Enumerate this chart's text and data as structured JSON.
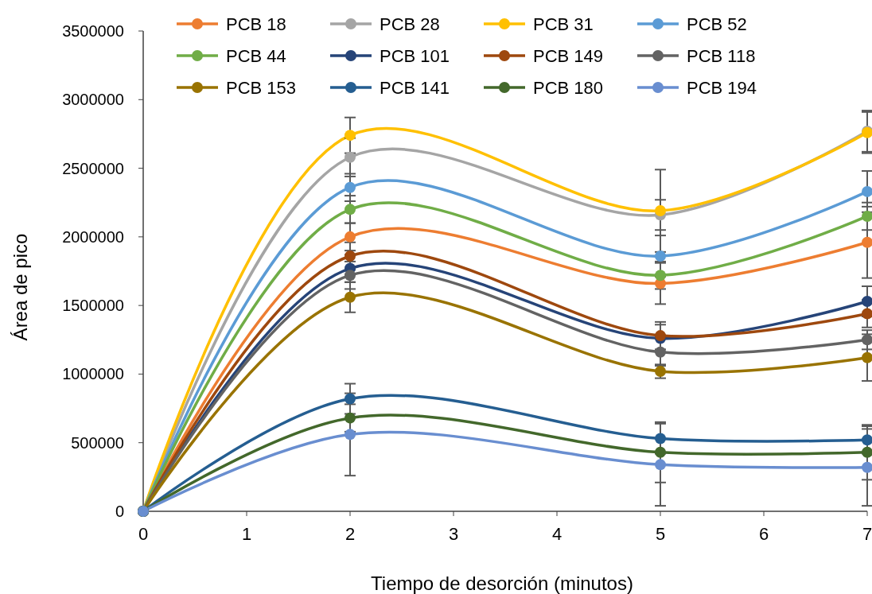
{
  "chart_data": {
    "type": "line",
    "xlabel": "Tiempo de desorción (minutos)",
    "ylabel": "Área de pico",
    "x": [
      0,
      2,
      5,
      7
    ],
    "xlim": [
      0,
      7
    ],
    "xticks": [
      0,
      1,
      2,
      3,
      4,
      5,
      6,
      7
    ],
    "ylim": [
      0,
      3500000
    ],
    "yticks": [
      0,
      500000,
      1000000,
      1500000,
      2000000,
      2500000,
      3000000,
      3500000
    ],
    "grid": false,
    "legend": "top",
    "marker": "circle",
    "line_style": "solid",
    "series": [
      {
        "name": "PCB 18",
        "color": "#ed7d31",
        "values": [
          0,
          2000000,
          1660000,
          1960000
        ],
        "errors": [
          null,
          100000,
          150000,
          260000
        ]
      },
      {
        "name": "PCB 28",
        "color": "#a5a5a5",
        "values": [
          0,
          2580000,
          2160000,
          2770000
        ],
        "errors": [
          null,
          140000,
          110000,
          150000
        ]
      },
      {
        "name": "PCB 31",
        "color": "#ffc000",
        "values": [
          0,
          2740000,
          2190000,
          2760000
        ],
        "errors": [
          null,
          130000,
          300000,
          150000
        ]
      },
      {
        "name": "PCB 52",
        "color": "#5b9bd5",
        "values": [
          0,
          2360000,
          1860000,
          2330000
        ],
        "errors": [
          null,
          100000,
          150000,
          150000
        ]
      },
      {
        "name": "PCB 44",
        "color": "#70ad47",
        "values": [
          0,
          2200000,
          1720000,
          2150000
        ],
        "errors": [
          null,
          100000,
          100000,
          100000
        ]
      },
      {
        "name": "PCB 101",
        "color": "#264478",
        "values": [
          0,
          1770000,
          1260000,
          1530000
        ],
        "errors": [
          null,
          100000,
          100000,
          110000
        ]
      },
      {
        "name": "PCB 149",
        "color": "#9e480e",
        "values": [
          0,
          1860000,
          1280000,
          1440000
        ],
        "errors": [
          null,
          100000,
          100000,
          100000
        ]
      },
      {
        "name": "PCB 118",
        "color": "#636363",
        "values": [
          0,
          1720000,
          1160000,
          1250000
        ],
        "errors": [
          null,
          100000,
          100000,
          70000
        ]
      },
      {
        "name": "PCB 153",
        "color": "#997300",
        "values": [
          0,
          1560000,
          1020000,
          1120000
        ],
        "errors": [
          null,
          110000,
          50000,
          170000
        ]
      },
      {
        "name": "PCB 141",
        "color": "#255e91",
        "values": [
          0,
          820000,
          530000,
          520000
        ],
        "errors": [
          null,
          110000,
          110000,
          100000
        ]
      },
      {
        "name": "PCB 180",
        "color": "#43682b",
        "values": [
          0,
          680000,
          430000,
          430000
        ],
        "errors": [
          null,
          100000,
          220000,
          200000
        ]
      },
      {
        "name": "PCB 194",
        "color": "#698ed0",
        "values": [
          0,
          560000,
          340000,
          320000
        ],
        "errors": [
          null,
          300000,
          300000,
          280000
        ]
      }
    ]
  }
}
